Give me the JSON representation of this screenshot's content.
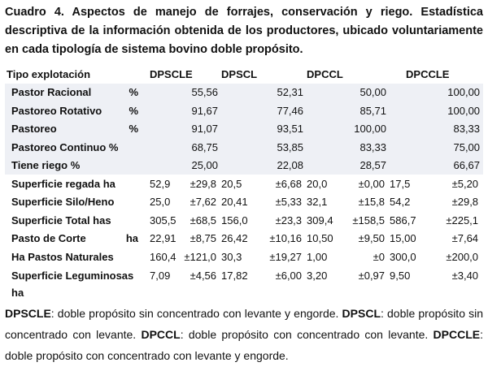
{
  "caption": "Cuadro 4. Aspectos de manejo de forrajes, conservación y riego. Estadística descriptiva de la información obtenida de los productores, ubicado voluntariamente en cada tipología de sistema bovino doble propósito.",
  "headers": [
    "Tipo explotación",
    "DPSCLE",
    "DPSCL",
    "DPCCL",
    "DPCCLE"
  ],
  "percent_rows": [
    {
      "label": "Pastor Racional",
      "unit": "%",
      "values": [
        "55,56",
        "52,31",
        "50,00",
        "100,00"
      ]
    },
    {
      "label": "Pastoreo Rotativo",
      "unit": "%",
      "values": [
        "91,67",
        "77,46",
        "85,71",
        "100,00"
      ]
    },
    {
      "label": "Pastoreo",
      "unit": "%",
      "values": [
        "91,07",
        "93,51",
        "100,00",
        "83,33"
      ]
    },
    {
      "label": "Pastoreo Continuo %",
      "unit": "",
      "values": [
        "68,75",
        "53,85",
        "83,33",
        "75,00"
      ]
    },
    {
      "label": "Tiene riego  %",
      "unit": "",
      "values": [
        "25,00",
        "22,08",
        "28,57",
        "66,67"
      ]
    }
  ],
  "stat_rows": [
    {
      "label": "Superficie regada ha",
      "unit": "",
      "values": [
        "52,9",
        "±29,8",
        "20,5",
        "±6,68",
        "20,0",
        "±0,00",
        "17,5",
        "±5,20"
      ]
    },
    {
      "label": "Superficie Silo/Heno",
      "unit": "",
      "values": [
        "25,0",
        "±7,62",
        "20,41",
        "±5,33",
        "32,1",
        "±15,8",
        "54,2",
        "±29,8"
      ]
    },
    {
      "label": "Superficie Total has",
      "unit": "",
      "values": [
        "305,5",
        "±68,5",
        "156,0",
        "±23,3",
        "309,4",
        "±158,5",
        "586,7",
        "±225,1"
      ]
    },
    {
      "label": "Pasto de Corte",
      "unit": "ha",
      "values": [
        "22,91",
        "±8,75",
        "26,42",
        "±10,16",
        "10,50",
        "±9,50",
        "15,00",
        "±7,64"
      ]
    },
    {
      "label": "Ha Pastos Naturales",
      "unit": "",
      "values": [
        "160,4",
        "±121,0",
        "30,3",
        "±19,27",
        "1,00",
        "±0",
        "300,0",
        "±200,0"
      ]
    },
    {
      "label": "Superficie Leguminosas",
      "label_line2": "ha",
      "unit": "",
      "values": [
        "7,09",
        "±4,56",
        "17,82",
        "±6,00",
        "3,20",
        "±0,97",
        "9,50",
        "±3,40"
      ]
    }
  ],
  "legend": [
    {
      "code": "DPSCLE",
      "text": ": doble propósito sin concentrado con levante y engorde. "
    },
    {
      "code": "DPSCL",
      "text": ": doble propósito sin concentrado con levante. "
    },
    {
      "code": "DPCCL",
      "text": ": doble propósito con concentrado con levante. "
    },
    {
      "code": "DPCCLE",
      "text": ": doble propósito con concentrado con levante y engorde."
    }
  ],
  "colors": {
    "row_shade": "#eef0f5",
    "text": "#111111"
  }
}
